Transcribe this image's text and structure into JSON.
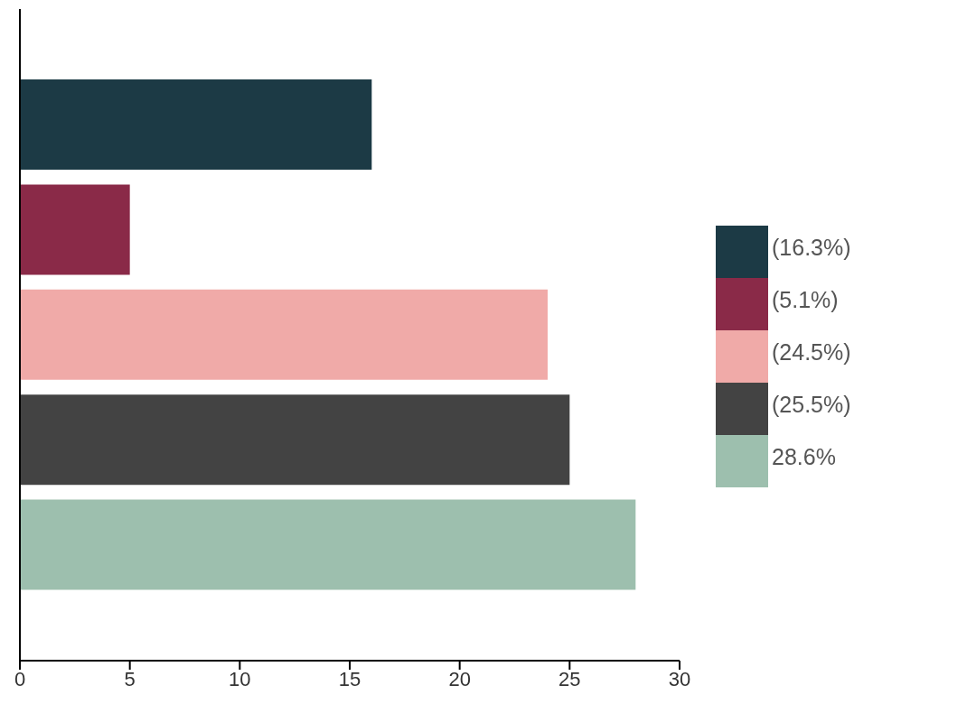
{
  "chart_data": {
    "type": "bar",
    "orientation": "horizontal",
    "categories": [
      null,
      null,
      null,
      null,
      null
    ],
    "series": [
      {
        "name": "(16.3%)",
        "color": "#1c3a45",
        "values": [
          16,
          null,
          null,
          null,
          null
        ]
      },
      {
        "name": "(5.1%)",
        "color": "#8a2a48",
        "values": [
          null,
          5,
          null,
          null,
          null
        ]
      },
      {
        "name": "(24.5%)",
        "color": "#f0aaa8",
        "values": [
          null,
          null,
          24,
          null,
          null
        ]
      },
      {
        "name": "(25.5%)",
        "color": "#434343",
        "values": [
          null,
          null,
          null,
          25,
          null
        ]
      },
      {
        "name": "28.6%",
        "color": "#9dbfae",
        "values": [
          null,
          null,
          null,
          null,
          28
        ]
      }
    ],
    "xlim": [
      0,
      30
    ],
    "xticks": [
      0,
      5,
      10,
      15,
      20,
      25,
      30
    ],
    "tick_labels": "x",
    "grid": false,
    "legend": "right"
  }
}
